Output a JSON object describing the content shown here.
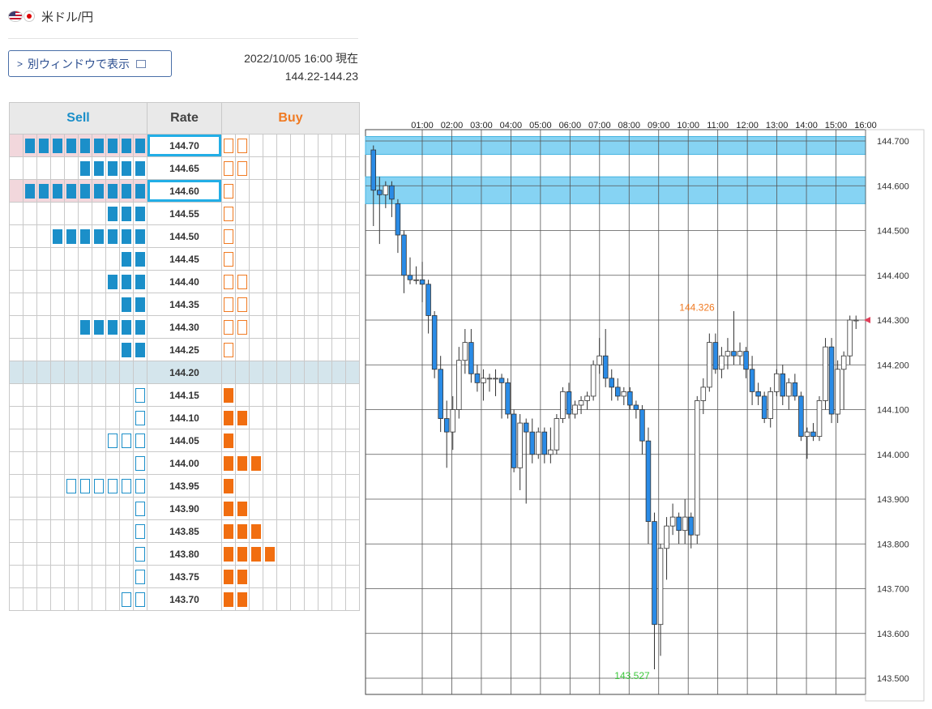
{
  "header": {
    "pair_title": "米ドル/円",
    "flag_left": "us-flag-icon",
    "flag_right": "jp-flag-icon"
  },
  "toolbar": {
    "popout_label": "別ウィンドウで表示"
  },
  "quote": {
    "timestamp": "2022/10/05 16:00 現在",
    "bid_ask": "144.22-144.23"
  },
  "order_book": {
    "headers": {
      "sell": "Sell",
      "rate": "Rate",
      "buy": "Buy"
    },
    "sell_color": "#1b8fc9",
    "buy_color": "#f16e10",
    "rows": [
      {
        "rate": "144.70",
        "sell": 9,
        "sell_style": "filled",
        "buy": 2,
        "buy_style": "outline",
        "highlight": true
      },
      {
        "rate": "144.65",
        "sell": 5,
        "sell_style": "filled",
        "buy": 2,
        "buy_style": "outline"
      },
      {
        "rate": "144.60",
        "sell": 9,
        "sell_style": "filled",
        "buy": 1,
        "buy_style": "outline",
        "highlight": true
      },
      {
        "rate": "144.55",
        "sell": 3,
        "sell_style": "filled",
        "buy": 1,
        "buy_style": "outline"
      },
      {
        "rate": "144.50",
        "sell": 7,
        "sell_style": "filled",
        "buy": 1,
        "buy_style": "outline"
      },
      {
        "rate": "144.45",
        "sell": 2,
        "sell_style": "filled",
        "buy": 1,
        "buy_style": "outline"
      },
      {
        "rate": "144.40",
        "sell": 3,
        "sell_style": "filled",
        "buy": 2,
        "buy_style": "outline"
      },
      {
        "rate": "144.35",
        "sell": 2,
        "sell_style": "filled",
        "buy": 2,
        "buy_style": "outline"
      },
      {
        "rate": "144.30",
        "sell": 5,
        "sell_style": "filled",
        "buy": 2,
        "buy_style": "outline"
      },
      {
        "rate": "144.25",
        "sell": 2,
        "sell_style": "filled",
        "buy": 1,
        "buy_style": "outline"
      },
      {
        "rate": "144.20",
        "sell": 0,
        "sell_style": "filled",
        "buy": 0,
        "buy_style": "filled",
        "current": true
      },
      {
        "rate": "144.15",
        "sell": 1,
        "sell_style": "outline",
        "buy": 1,
        "buy_style": "filled"
      },
      {
        "rate": "144.10",
        "sell": 1,
        "sell_style": "outline",
        "buy": 2,
        "buy_style": "filled"
      },
      {
        "rate": "144.05",
        "sell": 3,
        "sell_style": "outline",
        "buy": 1,
        "buy_style": "filled"
      },
      {
        "rate": "144.00",
        "sell": 1,
        "sell_style": "outline",
        "buy": 3,
        "buy_style": "filled"
      },
      {
        "rate": "143.95",
        "sell": 6,
        "sell_style": "outline",
        "buy": 1,
        "buy_style": "filled"
      },
      {
        "rate": "143.90",
        "sell": 1,
        "sell_style": "outline",
        "buy": 2,
        "buy_style": "filled"
      },
      {
        "rate": "143.85",
        "sell": 1,
        "sell_style": "outline",
        "buy": 3,
        "buy_style": "filled"
      },
      {
        "rate": "143.80",
        "sell": 1,
        "sell_style": "outline",
        "buy": 4,
        "buy_style": "filled"
      },
      {
        "rate": "143.75",
        "sell": 1,
        "sell_style": "outline",
        "buy": 2,
        "buy_style": "filled"
      },
      {
        "rate": "143.70",
        "sell": 2,
        "sell_style": "outline",
        "buy": 2,
        "buy_style": "filled"
      }
    ]
  },
  "chart_data": {
    "type": "candlestick",
    "x_tick_labels": [
      "01:00",
      "02:00",
      "03:00",
      "04:00",
      "05:00",
      "06:00",
      "07:00",
      "08:00",
      "09:00",
      "10:00",
      "11:00",
      "12:00",
      "13:00",
      "14:00",
      "15:00",
      "16:00"
    ],
    "y_tick_labels": [
      "144.700",
      "144.600",
      "144.500",
      "144.400",
      "144.300",
      "144.200",
      "144.100",
      "144.000",
      "143.900",
      "143.800",
      "143.700",
      "143.600",
      "143.500"
    ],
    "ylim": [
      143.5,
      144.7
    ],
    "bands": [
      [
        144.67,
        144.71
      ],
      [
        144.56,
        144.62
      ]
    ],
    "annotations": [
      {
        "text": "144.326",
        "color": "#f07a22"
      },
      {
        "text": "143.527",
        "color": "#3cc83c"
      }
    ],
    "up_color": "#ffffff",
    "down_color": "#2a8be6",
    "candles": [
      [
        144.68,
        144.69,
        144.51,
        144.59
      ],
      [
        144.59,
        144.62,
        144.47,
        144.58
      ],
      [
        144.58,
        144.61,
        144.55,
        144.6
      ],
      [
        144.6,
        144.61,
        144.53,
        144.57
      ],
      [
        144.56,
        144.57,
        144.45,
        144.49
      ],
      [
        144.49,
        144.5,
        144.36,
        144.4
      ],
      [
        144.4,
        144.44,
        144.38,
        144.39
      ],
      [
        144.39,
        144.42,
        144.38,
        144.39
      ],
      [
        144.39,
        144.43,
        144.34,
        144.38
      ],
      [
        144.38,
        144.39,
        144.27,
        144.31
      ],
      [
        144.31,
        144.32,
        144.17,
        144.19
      ],
      [
        144.19,
        144.22,
        144.05,
        144.08
      ],
      [
        144.08,
        144.12,
        143.97,
        144.05
      ],
      [
        144.05,
        144.13,
        144.01,
        144.1
      ],
      [
        144.1,
        144.24,
        144.08,
        144.21
      ],
      [
        144.21,
        144.28,
        144.18,
        144.25
      ],
      [
        144.25,
        144.28,
        144.16,
        144.18
      ],
      [
        144.18,
        144.2,
        144.14,
        144.16
      ],
      [
        144.16,
        144.19,
        144.12,
        144.17
      ],
      [
        144.17,
        144.18,
        144.14,
        144.17
      ],
      [
        144.17,
        144.19,
        144.13,
        144.17
      ],
      [
        144.17,
        144.18,
        144.08,
        144.16
      ],
      [
        144.16,
        144.17,
        144.08,
        144.09
      ],
      [
        144.09,
        144.1,
        143.96,
        143.97
      ],
      [
        143.97,
        144.09,
        143.92,
        144.07
      ],
      [
        144.07,
        144.08,
        143.89,
        144.05
      ],
      [
        144.05,
        144.08,
        143.98,
        144.0
      ],
      [
        144.0,
        144.06,
        143.99,
        144.05
      ],
      [
        144.05,
        144.06,
        143.98,
        144.0
      ],
      [
        144.0,
        144.06,
        143.98,
        144.01
      ],
      [
        144.01,
        144.09,
        144.0,
        144.08
      ],
      [
        144.08,
        144.15,
        144.07,
        144.14
      ],
      [
        144.14,
        144.16,
        144.08,
        144.09
      ],
      [
        144.09,
        144.12,
        144.08,
        144.11
      ],
      [
        144.11,
        144.13,
        144.09,
        144.12
      ],
      [
        144.12,
        144.14,
        144.1,
        144.13
      ],
      [
        144.13,
        144.21,
        144.12,
        144.2
      ],
      [
        144.2,
        144.26,
        144.18,
        144.22
      ],
      [
        144.22,
        144.28,
        144.15,
        144.17
      ],
      [
        144.17,
        144.19,
        144.12,
        144.15
      ],
      [
        144.15,
        144.17,
        144.12,
        144.13
      ],
      [
        144.13,
        144.15,
        144.11,
        144.14
      ],
      [
        144.14,
        144.15,
        144.1,
        144.11
      ],
      [
        144.11,
        144.12,
        144.08,
        144.1
      ],
      [
        144.1,
        144.11,
        144.0,
        144.03
      ],
      [
        144.03,
        144.06,
        143.8,
        143.85
      ],
      [
        143.85,
        143.87,
        143.52,
        143.62
      ],
      [
        143.62,
        143.8,
        143.55,
        143.79
      ],
      [
        143.79,
        143.86,
        143.72,
        143.84
      ],
      [
        143.84,
        143.89,
        143.82,
        143.86
      ],
      [
        143.86,
        143.87,
        143.8,
        143.83
      ],
      [
        143.83,
        143.9,
        143.8,
        143.86
      ],
      [
        143.86,
        143.87,
        143.79,
        143.82
      ],
      [
        143.82,
        144.13,
        143.8,
        144.12
      ],
      [
        144.12,
        144.17,
        144.09,
        144.15
      ],
      [
        144.15,
        144.27,
        144.14,
        144.25
      ],
      [
        144.25,
        144.27,
        144.18,
        144.19
      ],
      [
        144.19,
        144.24,
        144.17,
        144.22
      ],
      [
        144.22,
        144.26,
        144.19,
        144.23
      ],
      [
        144.23,
        144.32,
        144.2,
        144.22
      ],
      [
        144.22,
        144.25,
        144.2,
        144.23
      ],
      [
        144.23,
        144.24,
        144.17,
        144.19
      ],
      [
        144.19,
        144.22,
        144.11,
        144.14
      ],
      [
        144.14,
        144.16,
        144.11,
        144.13
      ],
      [
        144.13,
        144.14,
        144.07,
        144.08
      ],
      [
        144.08,
        144.15,
        144.06,
        144.14
      ],
      [
        144.14,
        144.19,
        144.13,
        144.18
      ],
      [
        144.18,
        144.2,
        144.11,
        144.13
      ],
      [
        144.13,
        144.17,
        144.1,
        144.16
      ],
      [
        144.16,
        144.18,
        144.12,
        144.13
      ],
      [
        144.13,
        144.14,
        144.03,
        144.04
      ],
      [
        144.04,
        144.06,
        143.99,
        144.05
      ],
      [
        144.05,
        144.07,
        144.03,
        144.04
      ],
      [
        144.04,
        144.13,
        144.03,
        144.12
      ],
      [
        144.12,
        144.26,
        144.1,
        144.24
      ],
      [
        144.24,
        144.26,
        144.07,
        144.09
      ],
      [
        144.09,
        144.21,
        144.07,
        144.19
      ],
      [
        144.19,
        144.23,
        144.1,
        144.22
      ],
      [
        144.22,
        144.31,
        144.2,
        144.3
      ],
      [
        144.3,
        144.31,
        144.28,
        144.3
      ]
    ]
  }
}
